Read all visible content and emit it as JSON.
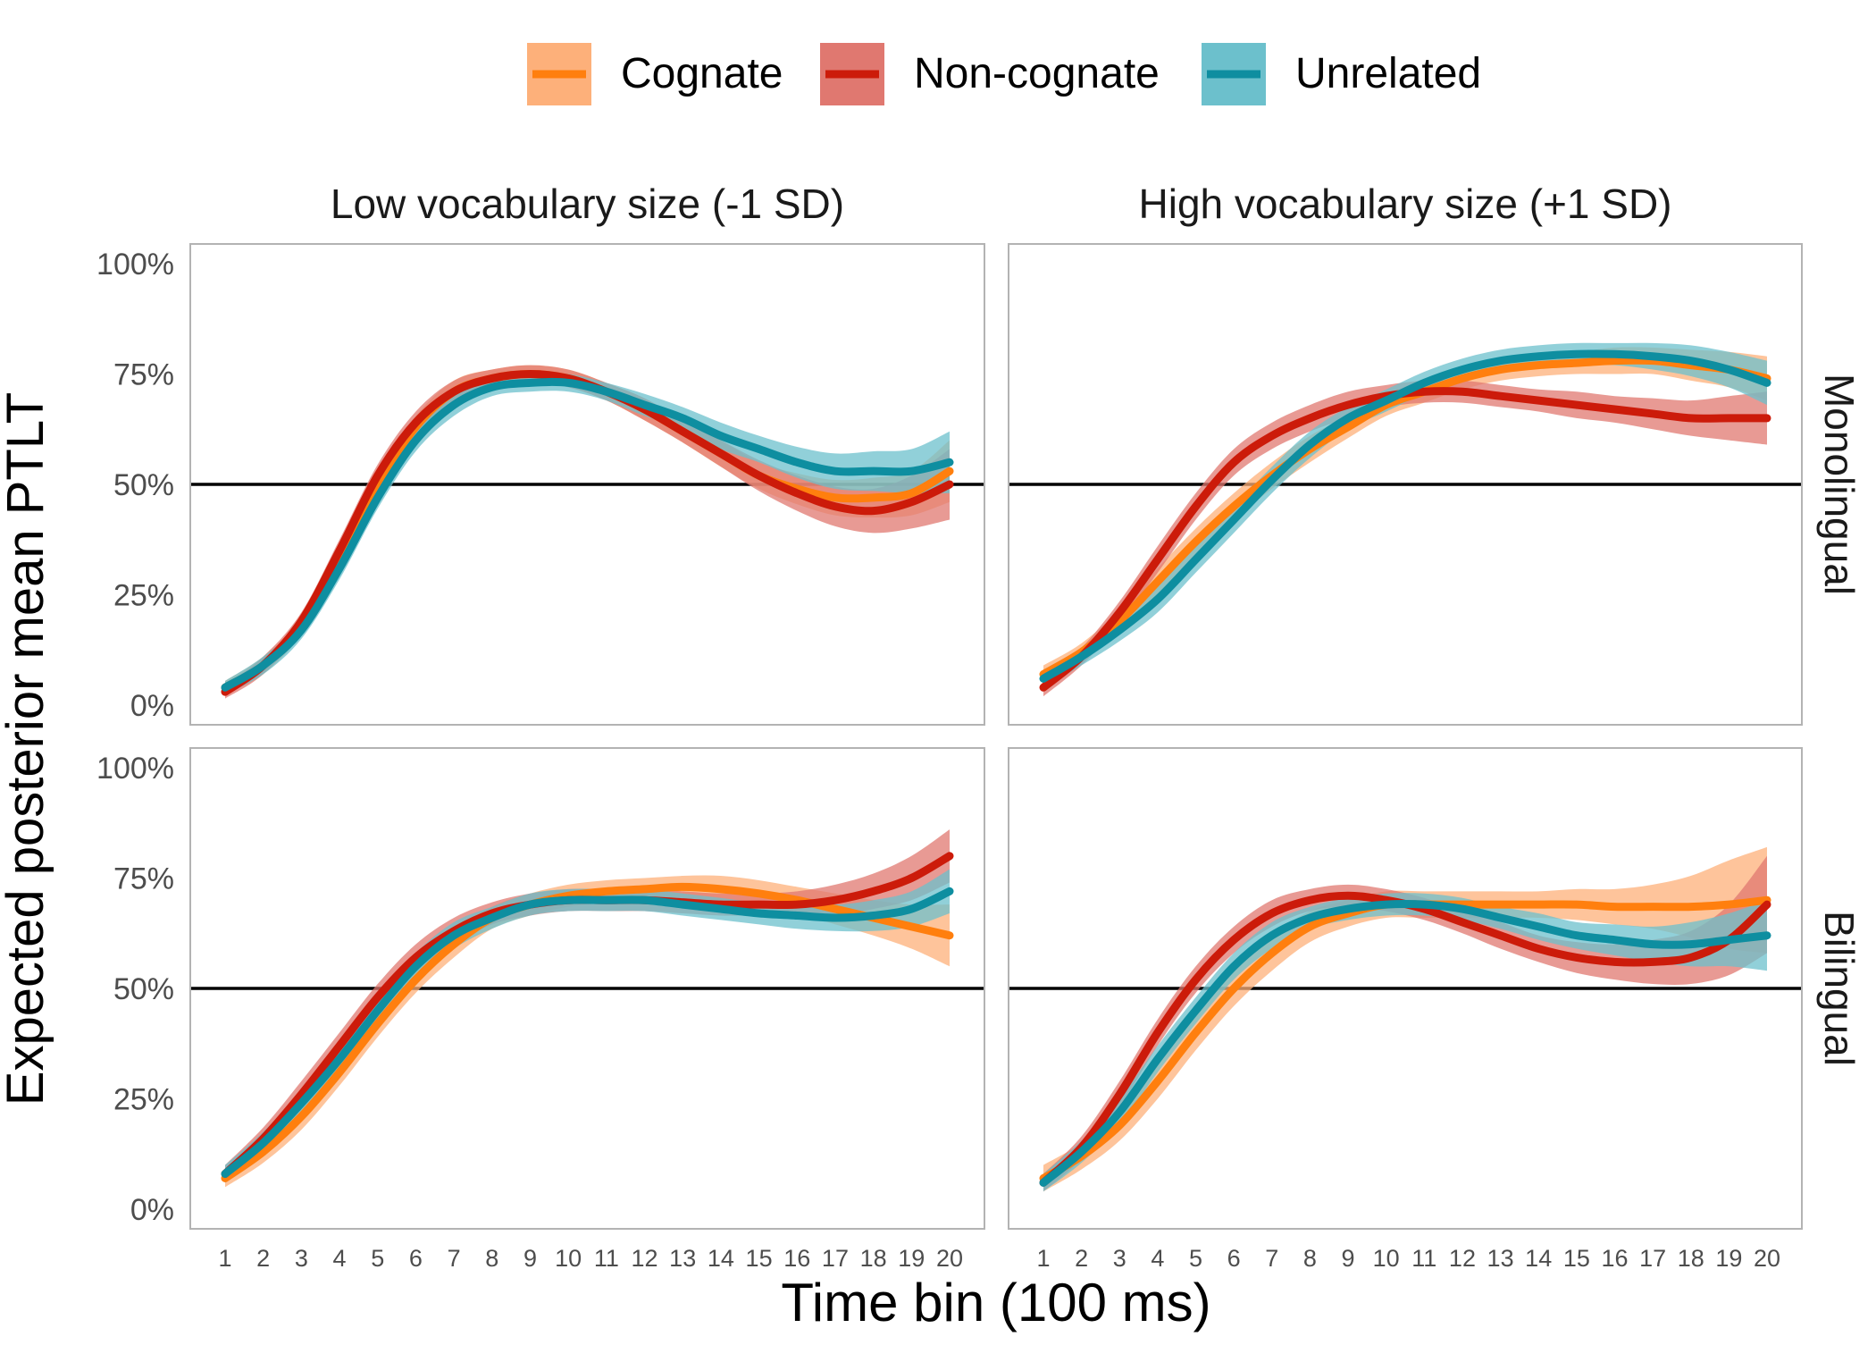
{
  "chart_data": {
    "type": "line",
    "title": "",
    "xlabel": "Time bin (100 ms)",
    "ylabel": "Expected posterior mean PTLT",
    "x": [
      1,
      2,
      3,
      4,
      5,
      6,
      7,
      8,
      9,
      10,
      11,
      12,
      13,
      14,
      15,
      16,
      17,
      18,
      19,
      20
    ],
    "xlim": [
      1,
      20
    ],
    "ylim": [
      0,
      100
    ],
    "y_ticks": [
      0,
      25,
      50,
      75,
      100
    ],
    "y_tick_labels": [
      "0%",
      "25%",
      "50%",
      "75%",
      "100%"
    ],
    "reference_line": 50,
    "grid": false,
    "legend": {
      "position": "top",
      "entries": [
        {
          "name": "Cognate",
          "color": "#FF7F0E",
          "band_color": "#FDB07A"
        },
        {
          "name": "Non-cognate",
          "color": "#CC1B0A",
          "band_color": "#E07870"
        },
        {
          "name": "Unrelated",
          "color": "#0E8EA0",
          "band_color": "#6CC0CC"
        }
      ]
    },
    "column_facets": [
      "Low vocabulary size (-1 SD)",
      "High vocabulary size (+1 SD)"
    ],
    "row_facets": [
      "Monolingual",
      "Bilingual"
    ],
    "panels": [
      {
        "row": 0,
        "col": 0,
        "series": [
          {
            "name": "Cognate",
            "values": [
              4,
              9,
              18,
              33,
              50,
              63,
              71,
              74,
              75,
              74,
              71,
              67,
              62,
              57,
              52,
              49,
              47,
              47,
              48,
              53
            ],
            "band": [
              1.5,
              2,
              2,
              2.5,
              2.5,
              2.5,
              2.5,
              2,
              2,
              2,
              2,
              2.5,
              2.5,
              3,
              3,
              3.5,
              4,
              4.5,
              5,
              7
            ]
          },
          {
            "name": "Non-cognate",
            "values": [
              3,
              9,
              19,
              35,
              52,
              64,
              71,
              74,
              75,
              74,
              71,
              67,
              62,
              57,
              52,
              48,
              45,
              44,
              46,
              50
            ],
            "band": [
              1.5,
              2,
              2,
              2.5,
              2.5,
              2.5,
              2.5,
              2,
              2,
              2,
              2,
              2.5,
              2.5,
              3,
              3.5,
              4,
              4.5,
              5,
              6,
              8
            ]
          },
          {
            "name": "Unrelated",
            "values": [
              4,
              9,
              17,
              31,
              47,
              60,
              68,
              72,
              73,
              73,
              71,
              68,
              65,
              61,
              58,
              55,
              53,
              53,
              53,
              55
            ],
            "band": [
              1.5,
              2,
              2,
              2.5,
              2.5,
              2.5,
              2.5,
              2,
              2,
              2,
              2,
              2.5,
              2.5,
              3,
              3,
              3.5,
              4,
              4.5,
              5,
              7
            ]
          }
        ]
      },
      {
        "row": 0,
        "col": 1,
        "series": [
          {
            "name": "Cognate",
            "values": [
              7,
              12,
              19,
              28,
              37,
              45,
              52,
              58,
              63,
              68,
              71,
              74,
              76,
              77,
              77.5,
              78,
              78,
              77,
              76,
              74
            ],
            "band": [
              2,
              2,
              2.5,
              3,
              3,
              3,
              3,
              3,
              2.5,
              2.5,
              2.5,
              2.5,
              2.5,
              2.5,
              2.5,
              3,
              3,
              3.5,
              4,
              5
            ]
          },
          {
            "name": "Non-cognate",
            "values": [
              4,
              11,
              21,
              33,
              45,
              55,
              61,
              65,
              68,
              70,
              71,
              71,
              70,
              69,
              68,
              67,
              66,
              65,
              65,
              65
            ],
            "band": [
              2,
              2,
              2.5,
              3,
              3,
              3,
              3,
              3,
              3,
              2.5,
              2.5,
              2.5,
              2.5,
              2.5,
              3,
              3,
              3.5,
              4,
              5,
              6
            ]
          },
          {
            "name": "Unrelated",
            "values": [
              6,
              11,
              17,
              24,
              33,
              42,
              51,
              59,
              65,
              69,
              73,
              76,
              78,
              79,
              79.5,
              79.5,
              79,
              78,
              76,
              73
            ],
            "band": [
              2,
              2,
              2.5,
              3,
              3,
              3,
              3,
              3,
              2.5,
              2.5,
              2.5,
              2.5,
              2.5,
              2.5,
              2.5,
              2.5,
              3,
              3.5,
              4,
              5
            ]
          }
        ]
      },
      {
        "row": 1,
        "col": 0,
        "series": [
          {
            "name": "Cognate",
            "values": [
              7,
              13,
              21,
              31,
              42,
              52,
              60,
              66,
              69,
              71,
              72,
              72.5,
              73,
              72.5,
              71.5,
              70,
              68,
              66,
              64,
              62
            ],
            "band": [
              2,
              2.5,
              3,
              3,
              3,
              3,
              3,
              2.5,
              2.5,
              2.5,
              2.5,
              2.5,
              2.5,
              3,
              3,
              3,
              3.5,
              4,
              5,
              7
            ]
          },
          {
            "name": "Non-cognate",
            "values": [
              8,
              16,
              26,
              37,
              48,
              57,
              63,
              67,
              69,
              70,
              70,
              70,
              69.5,
              69,
              69,
              69,
              70,
              72,
              75,
              80
            ],
            "band": [
              2,
              2.5,
              3,
              3,
              3,
              3,
              3,
              2.5,
              2.5,
              2.5,
              2.5,
              2.5,
              2.5,
              2.5,
              2.5,
              3,
              3.5,
              4,
              5,
              6
            ]
          },
          {
            "name": "Unrelated",
            "values": [
              8,
              15,
              24,
              34,
              45,
              55,
              62,
              66,
              69,
              70,
              70,
              70,
              69,
              68,
              67,
              66.5,
              66,
              66.5,
              68,
              72
            ],
            "band": [
              2,
              2.5,
              3,
              3,
              3,
              3,
              3,
              2.5,
              2.5,
              2.5,
              2.5,
              2.5,
              2.5,
              2.5,
              2.5,
              3,
              3,
              3.5,
              4,
              5
            ]
          }
        ]
      },
      {
        "row": 1,
        "col": 1,
        "series": [
          {
            "name": "Cognate",
            "values": [
              7,
              12,
              19,
              29,
              40,
              50,
              58,
              64,
              67,
              69,
              69,
              69,
              69,
              69,
              69,
              68.5,
              68.5,
              68.5,
              69,
              70
            ],
            "band": [
              3,
              3,
              3.5,
              4,
              4,
              4,
              4,
              3.5,
              3,
              3,
              3,
              3,
              3,
              3,
              3.5,
              4,
              5,
              7,
              10,
              12
            ]
          },
          {
            "name": "Non-cognate",
            "values": [
              6,
              14,
              26,
              40,
              52,
              61,
              67,
              70,
              71,
              70,
              68,
              65,
              62,
              59,
              57,
              56,
              56,
              57,
              61,
              69
            ],
            "band": [
              2,
              2.5,
              3,
              3,
              3,
              3,
              3,
              2.5,
              2.5,
              2.5,
              2.5,
              2.5,
              3,
              3,
              3.5,
              4,
              5,
              6,
              8,
              11
            ]
          },
          {
            "name": "Unrelated",
            "values": [
              6,
              13,
              22,
              34,
              45,
              55,
              62,
              66,
              68,
              69,
              69,
              68,
              66,
              64,
              62,
              61,
              60,
              60,
              61,
              62
            ],
            "band": [
              2,
              2.5,
              3,
              3,
              3,
              3,
              3,
              2.5,
              2.5,
              2.5,
              2.5,
              2.5,
              2.5,
              3,
              3,
              3.5,
              4,
              5,
              6,
              8
            ]
          }
        ]
      }
    ]
  }
}
